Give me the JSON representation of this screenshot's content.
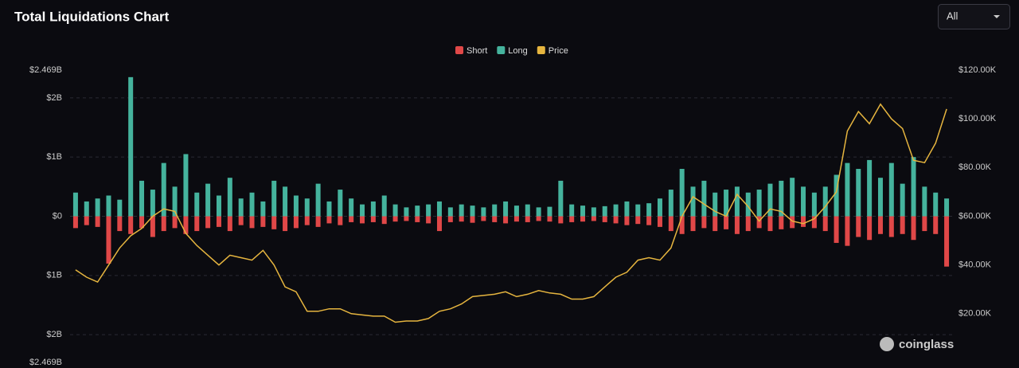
{
  "header": {
    "title": "Total Liquidations Chart",
    "range_selector": "All"
  },
  "watermark": "coinglass",
  "chart_data": {
    "type": "bar",
    "grid": true,
    "legend": "top",
    "categories": [
      null,
      null,
      null,
      null,
      null,
      null,
      null,
      null,
      null,
      null,
      null,
      null,
      null,
      null,
      null,
      null,
      null,
      null,
      null,
      null,
      null,
      null,
      null,
      null,
      null,
      null,
      null,
      null,
      null,
      null,
      null,
      null,
      null,
      null,
      null,
      null,
      null,
      null,
      null,
      null,
      null,
      null,
      null,
      null,
      null,
      null,
      null,
      null,
      null,
      null,
      null,
      null,
      null,
      null,
      null,
      null,
      null,
      null,
      null,
      null,
      null,
      null,
      null,
      null,
      null,
      null,
      null,
      null,
      null,
      null,
      null,
      null,
      null,
      null,
      null,
      null,
      null,
      null,
      null,
      null
    ],
    "ylim": [
      -2469000000,
      2469000000
    ],
    "yticks": [
      {
        "value": 2469000000,
        "label": "$2.469B"
      },
      {
        "value": 2000000000,
        "label": "$2B"
      },
      {
        "value": 1000000000,
        "label": "$1B"
      },
      {
        "value": 0,
        "label": "$0"
      },
      {
        "value": -1000000000,
        "label": "$1B"
      },
      {
        "value": -2000000000,
        "label": "$2B"
      },
      {
        "value": -2469000000,
        "label": "$2.469B"
      }
    ],
    "y2lim": [
      0,
      120000
    ],
    "y2ticks": [
      {
        "value": 120000,
        "label": "$120.00K"
      },
      {
        "value": 100000,
        "label": "$100.00K"
      },
      {
        "value": 80000,
        "label": "$80.00K"
      },
      {
        "value": 60000,
        "label": "$60.00K"
      },
      {
        "value": 40000,
        "label": "$40.00K"
      },
      {
        "value": 20000,
        "label": "$20.00K"
      }
    ],
    "series": [
      {
        "name": "Short",
        "type": "bar",
        "color": "#e04848",
        "values": [
          -200000000.0,
          -150000000.0,
          -180000000.0,
          -800000000.0,
          -250000000.0,
          -300000000.0,
          -200000000.0,
          -350000000.0,
          -250000000.0,
          -200000000.0,
          -300000000.0,
          -250000000.0,
          -200000000.0,
          -180000000.0,
          -250000000.0,
          -150000000.0,
          -200000000.0,
          -180000000.0,
          -220000000.0,
          -250000000.0,
          -200000000.0,
          -150000000.0,
          -180000000.0,
          -120000000.0,
          -150000000.0,
          -100000000.0,
          -120000000.0,
          -100000000.0,
          -130000000.0,
          -90000000.0,
          -80000000.0,
          -100000000.0,
          -120000000.0,
          -250000000.0,
          -100000000.0,
          -90000000.0,
          -110000000.0,
          -80000000.0,
          -100000000.0,
          -120000000.0,
          -90000000.0,
          -100000000.0,
          -80000000.0,
          -90000000.0,
          -120000000.0,
          -100000000.0,
          -90000000.0,
          -80000000.0,
          -100000000.0,
          -120000000.0,
          -150000000.0,
          -130000000.0,
          -150000000.0,
          -180000000.0,
          -250000000.0,
          -300000000.0,
          -250000000.0,
          -200000000.0,
          -250000000.0,
          -220000000.0,
          -300000000.0,
          -250000000.0,
          -200000000.0,
          -250000000.0,
          -220000000.0,
          -200000000.0,
          -180000000.0,
          -200000000.0,
          -250000000.0,
          -450000000.0,
          -500000000.0,
          -350000000.0,
          -400000000.0,
          -300000000.0,
          -350000000.0,
          -300000000.0,
          -400000000.0,
          -250000000.0,
          -300000000.0,
          -850000000.0
        ]
      },
      {
        "name": "Long",
        "type": "bar",
        "color": "#45b39d",
        "values": [
          400000000.0,
          250000000.0,
          300000000.0,
          350000000.0,
          280000000.0,
          2350000000.0,
          600000000.0,
          450000000.0,
          900000000.0,
          500000000.0,
          1050000000.0,
          400000000.0,
          550000000.0,
          350000000.0,
          650000000.0,
          300000000.0,
          400000000.0,
          250000000.0,
          600000000.0,
          500000000.0,
          350000000.0,
          300000000.0,
          550000000.0,
          250000000.0,
          450000000.0,
          300000000.0,
          200000000.0,
          250000000.0,
          350000000.0,
          200000000.0,
          150000000.0,
          180000000.0,
          200000000.0,
          250000000.0,
          150000000.0,
          200000000.0,
          180000000.0,
          150000000.0,
          200000000.0,
          250000000.0,
          180000000.0,
          200000000.0,
          150000000.0,
          160000000.0,
          600000000.0,
          200000000.0,
          180000000.0,
          150000000.0,
          170000000.0,
          200000000.0,
          250000000.0,
          200000000.0,
          220000000.0,
          300000000.0,
          450000000.0,
          800000000.0,
          500000000.0,
          600000000.0,
          400000000.0,
          450000000.0,
          500000000.0,
          400000000.0,
          450000000.0,
          550000000.0,
          600000000.0,
          650000000.0,
          500000000.0,
          400000000.0,
          500000000.0,
          700000000.0,
          900000000.0,
          800000000.0,
          950000000.0,
          650000000.0,
          900000000.0,
          550000000.0,
          1000000000.0,
          500000000.0,
          400000000.0,
          300000000.0
        ]
      },
      {
        "name": "Price",
        "type": "line",
        "axis": "y2",
        "color": "#e6b53f",
        "values": [
          38000,
          35000,
          33000,
          40000,
          47000,
          52000,
          55000,
          60000,
          63000,
          62000,
          53000,
          48000,
          44000,
          40000,
          44000,
          43000,
          42000,
          46000,
          40000,
          31000,
          29000,
          21000,
          21000,
          22000,
          22000,
          20000,
          19500,
          19000,
          19000,
          16500,
          17000,
          17000,
          18000,
          21000,
          22000,
          24000,
          27000,
          27500,
          28000,
          29000,
          27000,
          28000,
          29500,
          28500,
          28000,
          26000,
          26000,
          27000,
          31000,
          35000,
          37000,
          42000,
          43000,
          42000,
          47000,
          60000,
          68000,
          65000,
          62000,
          60000,
          69000,
          64000,
          58000,
          63000,
          62000,
          58000,
          57000,
          59000,
          64000,
          70000,
          95000,
          103000,
          98000,
          106000,
          100000,
          96000,
          83000,
          82000,
          90000,
          104000
        ]
      }
    ]
  }
}
